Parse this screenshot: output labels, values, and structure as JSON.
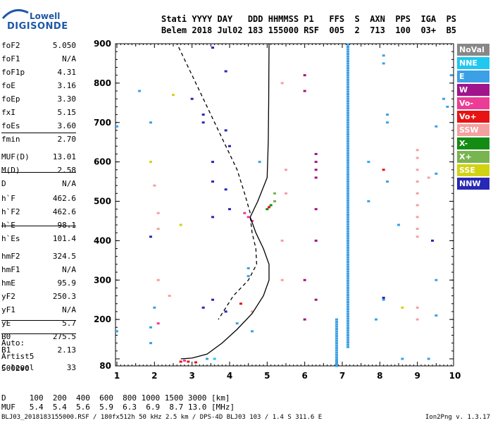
{
  "logo": {
    "line1": "Lowell",
    "line2": "DIGISONDE"
  },
  "header": {
    "line1": "Stati YYYY DAY   DDD HHMMSS P1   FFS  S  AXN  PPS  IGA  PS",
    "line2": "Belem 2018 Jul02 183 155000 RSF  005  2  713  100  03+  B5"
  },
  "parameters": [
    {
      "name": "foF2",
      "value": "5.050"
    },
    {
      "name": "foF1",
      "value": "N/A"
    },
    {
      "name": "foF1p",
      "value": "4.31"
    },
    {
      "name": "foE",
      "value": "3.16"
    },
    {
      "name": "foEp",
      "value": "3.30"
    },
    {
      "name": "fxI",
      "value": "5.15"
    },
    {
      "name": "foEs",
      "value": "3.60"
    },
    {
      "name": "fmin",
      "value": "2.70"
    },
    {
      "name": "MUF(D)",
      "value": "13.01"
    },
    {
      "name": "M(D)",
      "value": "2.58"
    },
    {
      "name": "D",
      "value": "N/A"
    },
    {
      "name": "h`F",
      "value": "462.6"
    },
    {
      "name": "h`F2",
      "value": "462.6"
    },
    {
      "name": "h`E",
      "value": "98.1"
    },
    {
      "name": "h`Es",
      "value": "101.4"
    },
    {
      "name": "hmF2",
      "value": "324.5"
    },
    {
      "name": "hmF1",
      "value": "N/A"
    },
    {
      "name": "hmE",
      "value": "95.9"
    },
    {
      "name": "yF2",
      "value": "250.3"
    },
    {
      "name": "yF1",
      "value": "N/A"
    },
    {
      "name": "yE",
      "value": "5.7"
    },
    {
      "name": "B0",
      "value": "275.5"
    },
    {
      "name": "B1",
      "value": "2.13"
    },
    {
      "name": "C-level",
      "value": "33"
    }
  ],
  "auto": {
    "line1": "Auto:",
    "line2": "Artist5",
    "line3": "500200"
  },
  "legend": [
    {
      "label": "NoVal",
      "color": "#888888"
    },
    {
      "label": "NNE",
      "color": "#1ec8f0"
    },
    {
      "label": "E",
      "color": "#3ca0e6"
    },
    {
      "label": "W",
      "color": "#a0148c"
    },
    {
      "label": "Vo-",
      "color": "#ec3c96"
    },
    {
      "label": "Vo+",
      "color": "#e61414"
    },
    {
      "label": "SSW",
      "color": "#f5a0a0"
    },
    {
      "label": "X-",
      "color": "#148c14"
    },
    {
      "label": "X+",
      "color": "#78b450"
    },
    {
      "label": "SSE",
      "color": "#d2d214"
    },
    {
      "label": "NNW",
      "color": "#2828b4"
    }
  ],
  "footer": {
    "d_line": "D     100  200  400  600  800 1000 1500 3000 [km]",
    "muf_line": "MUF   5.4  5.4  5.6  5.9  6.3  6.9  8.7 13.0 [MHz]",
    "file_line": "BLJ03_2018183155000.RSF / 180fx512h 50 kHz 2.5 km / DPS-4D BLJ03 103 / 1.4 S 311.6 E",
    "version": "Ion2Png v. 1.3.17"
  },
  "chart_data": {
    "type": "scatter",
    "xlim": [
      1,
      10
    ],
    "ylim": [
      80,
      900
    ],
    "x_ticks": [
      "1",
      "2",
      "3",
      "4",
      "5",
      "6",
      "7",
      "8",
      "9",
      "10"
    ],
    "y_ticks": [
      "80",
      "100",
      "200",
      "300",
      "400",
      "500",
      "600",
      "700",
      "800",
      "900"
    ],
    "profile_solid": [
      [
        2.7,
        100
      ],
      [
        3.0,
        102
      ],
      [
        3.4,
        112
      ],
      [
        3.8,
        140
      ],
      [
        4.2,
        175
      ],
      [
        4.6,
        215
      ],
      [
        4.9,
        260
      ],
      [
        5.05,
        300
      ],
      [
        5.05,
        340
      ],
      [
        4.9,
        380
      ],
      [
        4.7,
        420
      ],
      [
        4.55,
        460
      ],
      [
        4.75,
        500
      ],
      [
        5.0,
        560
      ],
      [
        5.03,
        650
      ],
      [
        5.04,
        750
      ],
      [
        5.05,
        900
      ]
    ],
    "profile_dashed": [
      [
        4.55,
        460
      ],
      [
        4.6,
        420
      ],
      [
        4.7,
        380
      ],
      [
        4.72,
        340
      ],
      [
        4.5,
        300
      ],
      [
        4.1,
        260
      ],
      [
        3.9,
        230
      ],
      [
        3.7,
        200
      ]
    ],
    "profile_dashed_upper": [
      [
        4.55,
        470
      ],
      [
        4.4,
        520
      ],
      [
        4.2,
        580
      ],
      [
        3.9,
        640
      ],
      [
        3.6,
        700
      ],
      [
        3.3,
        760
      ],
      [
        3.0,
        820
      ],
      [
        2.6,
        900
      ]
    ],
    "columns": [
      {
        "x": 7.15,
        "y_from": 130,
        "y_to": 900,
        "color": "#3ca0e6"
      },
      {
        "x": 6.85,
        "y_from": 80,
        "y_to": 200,
        "color": "#3ca0e6"
      }
    ],
    "points": [
      {
        "x": 3.55,
        "y": 890,
        "color": "#2828b4"
      },
      {
        "x": 3.0,
        "y": 760,
        "color": "#2828b4"
      },
      {
        "x": 3.3,
        "y": 720,
        "color": "#2828b4"
      },
      {
        "x": 3.3,
        "y": 700,
        "color": "#2828b4"
      },
      {
        "x": 3.9,
        "y": 830,
        "color": "#2828b4"
      },
      {
        "x": 3.9,
        "y": 680,
        "color": "#2828b4"
      },
      {
        "x": 4.0,
        "y": 640,
        "color": "#2828b4"
      },
      {
        "x": 3.55,
        "y": 600,
        "color": "#2828b4"
      },
      {
        "x": 3.55,
        "y": 550,
        "color": "#2828b4"
      },
      {
        "x": 3.9,
        "y": 530,
        "color": "#2828b4"
      },
      {
        "x": 3.55,
        "y": 460,
        "color": "#2828b4"
      },
      {
        "x": 4.0,
        "y": 480,
        "color": "#2828b4"
      },
      {
        "x": 3.55,
        "y": 250,
        "color": "#2828b4"
      },
      {
        "x": 3.3,
        "y": 230,
        "color": "#2828b4"
      },
      {
        "x": 3.9,
        "y": 220,
        "color": "#2828b4"
      },
      {
        "x": 6.0,
        "y": 780,
        "color": "#a0148c"
      },
      {
        "x": 6.3,
        "y": 620,
        "color": "#a0148c"
      },
      {
        "x": 6.3,
        "y": 600,
        "color": "#a0148c"
      },
      {
        "x": 6.3,
        "y": 580,
        "color": "#a0148c"
      },
      {
        "x": 6.3,
        "y": 560,
        "color": "#a0148c"
      },
      {
        "x": 6.0,
        "y": 820,
        "color": "#a0148c"
      },
      {
        "x": 6.3,
        "y": 480,
        "color": "#a0148c"
      },
      {
        "x": 6.3,
        "y": 400,
        "color": "#a0148c"
      },
      {
        "x": 6.0,
        "y": 300,
        "color": "#a0148c"
      },
      {
        "x": 6.3,
        "y": 250,
        "color": "#a0148c"
      },
      {
        "x": 6.0,
        "y": 200,
        "color": "#a0148c"
      },
      {
        "x": 4.5,
        "y": 460,
        "color": "#ec3c96"
      },
      {
        "x": 4.4,
        "y": 470,
        "color": "#ec3c96"
      },
      {
        "x": 4.6,
        "y": 450,
        "color": "#ec3c96"
      },
      {
        "x": 5.1,
        "y": 490,
        "color": "#148c14"
      },
      {
        "x": 5.0,
        "y": 480,
        "color": "#148c14"
      },
      {
        "x": 5.2,
        "y": 500,
        "color": "#78b450"
      },
      {
        "x": 5.2,
        "y": 520,
        "color": "#78b450"
      },
      {
        "x": 5.05,
        "y": 485,
        "color": "#e61414"
      },
      {
        "x": 2.7,
        "y": 92,
        "color": "#e61414"
      },
      {
        "x": 2.9,
        "y": 92,
        "color": "#e61414"
      },
      {
        "x": 3.1,
        "y": 90,
        "color": "#e61414"
      },
      {
        "x": 2.8,
        "y": 95,
        "color": "#ec3c96"
      },
      {
        "x": 3.4,
        "y": 100,
        "color": "#3ca0e6"
      },
      {
        "x": 3.6,
        "y": 100,
        "color": "#1ec8f0"
      },
      {
        "x": 1.6,
        "y": 780,
        "color": "#3ca0e6"
      },
      {
        "x": 1.9,
        "y": 700,
        "color": "#3ca0e6"
      },
      {
        "x": 2.5,
        "y": 770,
        "color": "#d2d214"
      },
      {
        "x": 1.9,
        "y": 600,
        "color": "#d2d214"
      },
      {
        "x": 2.0,
        "y": 540,
        "color": "#f5a0a0"
      },
      {
        "x": 2.1,
        "y": 470,
        "color": "#f5a0a0"
      },
      {
        "x": 2.1,
        "y": 430,
        "color": "#f5a0a0"
      },
      {
        "x": 1.9,
        "y": 410,
        "color": "#2828b4"
      },
      {
        "x": 2.7,
        "y": 440,
        "color": "#d2d214"
      },
      {
        "x": 2.0,
        "y": 230,
        "color": "#3ca0e6"
      },
      {
        "x": 2.1,
        "y": 190,
        "color": "#ec3c96"
      },
      {
        "x": 1.9,
        "y": 180,
        "color": "#3ca0e6"
      },
      {
        "x": 2.1,
        "y": 300,
        "color": "#f5a0a0"
      },
      {
        "x": 2.4,
        "y": 260,
        "color": "#f5a0a0"
      },
      {
        "x": 1.9,
        "y": 140,
        "color": "#3ca0e6"
      },
      {
        "x": 1.0,
        "y": 170,
        "color": "#3ca0e6"
      },
      {
        "x": 1.0,
        "y": 690,
        "color": "#3ca0e6"
      },
      {
        "x": 5.4,
        "y": 800,
        "color": "#f5a0a0"
      },
      {
        "x": 5.5,
        "y": 580,
        "color": "#f5a0a0"
      },
      {
        "x": 5.5,
        "y": 520,
        "color": "#f5a0a0"
      },
      {
        "x": 5.4,
        "y": 400,
        "color": "#f5a0a0"
      },
      {
        "x": 5.4,
        "y": 300,
        "color": "#f5a0a0"
      },
      {
        "x": 4.8,
        "y": 600,
        "color": "#3ca0e6"
      },
      {
        "x": 4.5,
        "y": 330,
        "color": "#3ca0e6"
      },
      {
        "x": 4.5,
        "y": 310,
        "color": "#3ca0e6"
      },
      {
        "x": 4.3,
        "y": 240,
        "color": "#e61414"
      },
      {
        "x": 4.6,
        "y": 220,
        "color": "#f5a0a0"
      },
      {
        "x": 4.6,
        "y": 170,
        "color": "#3ca0e6"
      },
      {
        "x": 4.2,
        "y": 190,
        "color": "#3ca0e6"
      },
      {
        "x": 7.7,
        "y": 600,
        "color": "#3ca0e6"
      },
      {
        "x": 7.7,
        "y": 500,
        "color": "#3ca0e6"
      },
      {
        "x": 8.1,
        "y": 870,
        "color": "#3ca0e6"
      },
      {
        "x": 8.1,
        "y": 850,
        "color": "#3ca0e6"
      },
      {
        "x": 8.2,
        "y": 720,
        "color": "#3ca0e6"
      },
      {
        "x": 8.2,
        "y": 700,
        "color": "#3ca0e6"
      },
      {
        "x": 8.2,
        "y": 550,
        "color": "#3ca0e6"
      },
      {
        "x": 8.1,
        "y": 580,
        "color": "#e61414"
      },
      {
        "x": 8.5,
        "y": 440,
        "color": "#3ca0e6"
      },
      {
        "x": 8.1,
        "y": 250,
        "color": "#3ca0e6"
      },
      {
        "x": 8.1,
        "y": 255,
        "color": "#2828b4"
      },
      {
        "x": 8.6,
        "y": 230,
        "color": "#d2d214"
      },
      {
        "x": 7.9,
        "y": 200,
        "color": "#3ca0e6"
      },
      {
        "x": 8.6,
        "y": 100,
        "color": "#3ca0e6"
      },
      {
        "x": 9.0,
        "y": 630,
        "color": "#f5a0a0"
      },
      {
        "x": 9.0,
        "y": 610,
        "color": "#f5a0a0"
      },
      {
        "x": 9.0,
        "y": 580,
        "color": "#f5a0a0"
      },
      {
        "x": 9.0,
        "y": 550,
        "color": "#f5a0a0"
      },
      {
        "x": 9.0,
        "y": 520,
        "color": "#f5a0a0"
      },
      {
        "x": 9.0,
        "y": 490,
        "color": "#f5a0a0"
      },
      {
        "x": 9.0,
        "y": 460,
        "color": "#f5a0a0"
      },
      {
        "x": 9.0,
        "y": 430,
        "color": "#f5a0a0"
      },
      {
        "x": 9.0,
        "y": 410,
        "color": "#f5a0a0"
      },
      {
        "x": 9.0,
        "y": 230,
        "color": "#f5a0a0"
      },
      {
        "x": 9.0,
        "y": 200,
        "color": "#f5a0a0"
      },
      {
        "x": 9.3,
        "y": 560,
        "color": "#f5a0a0"
      },
      {
        "x": 9.5,
        "y": 690,
        "color": "#3ca0e6"
      },
      {
        "x": 9.5,
        "y": 570,
        "color": "#3ca0e6"
      },
      {
        "x": 9.4,
        "y": 400,
        "color": "#2828b4"
      },
      {
        "x": 9.5,
        "y": 300,
        "color": "#3ca0e6"
      },
      {
        "x": 9.5,
        "y": 210,
        "color": "#3ca0e6"
      },
      {
        "x": 9.9,
        "y": 820,
        "color": "#3ca0e6"
      },
      {
        "x": 9.8,
        "y": 740,
        "color": "#3ca0e6"
      },
      {
        "x": 9.7,
        "y": 760,
        "color": "#3ca0e6"
      },
      {
        "x": 9.3,
        "y": 100,
        "color": "#3ca0e6"
      }
    ]
  }
}
